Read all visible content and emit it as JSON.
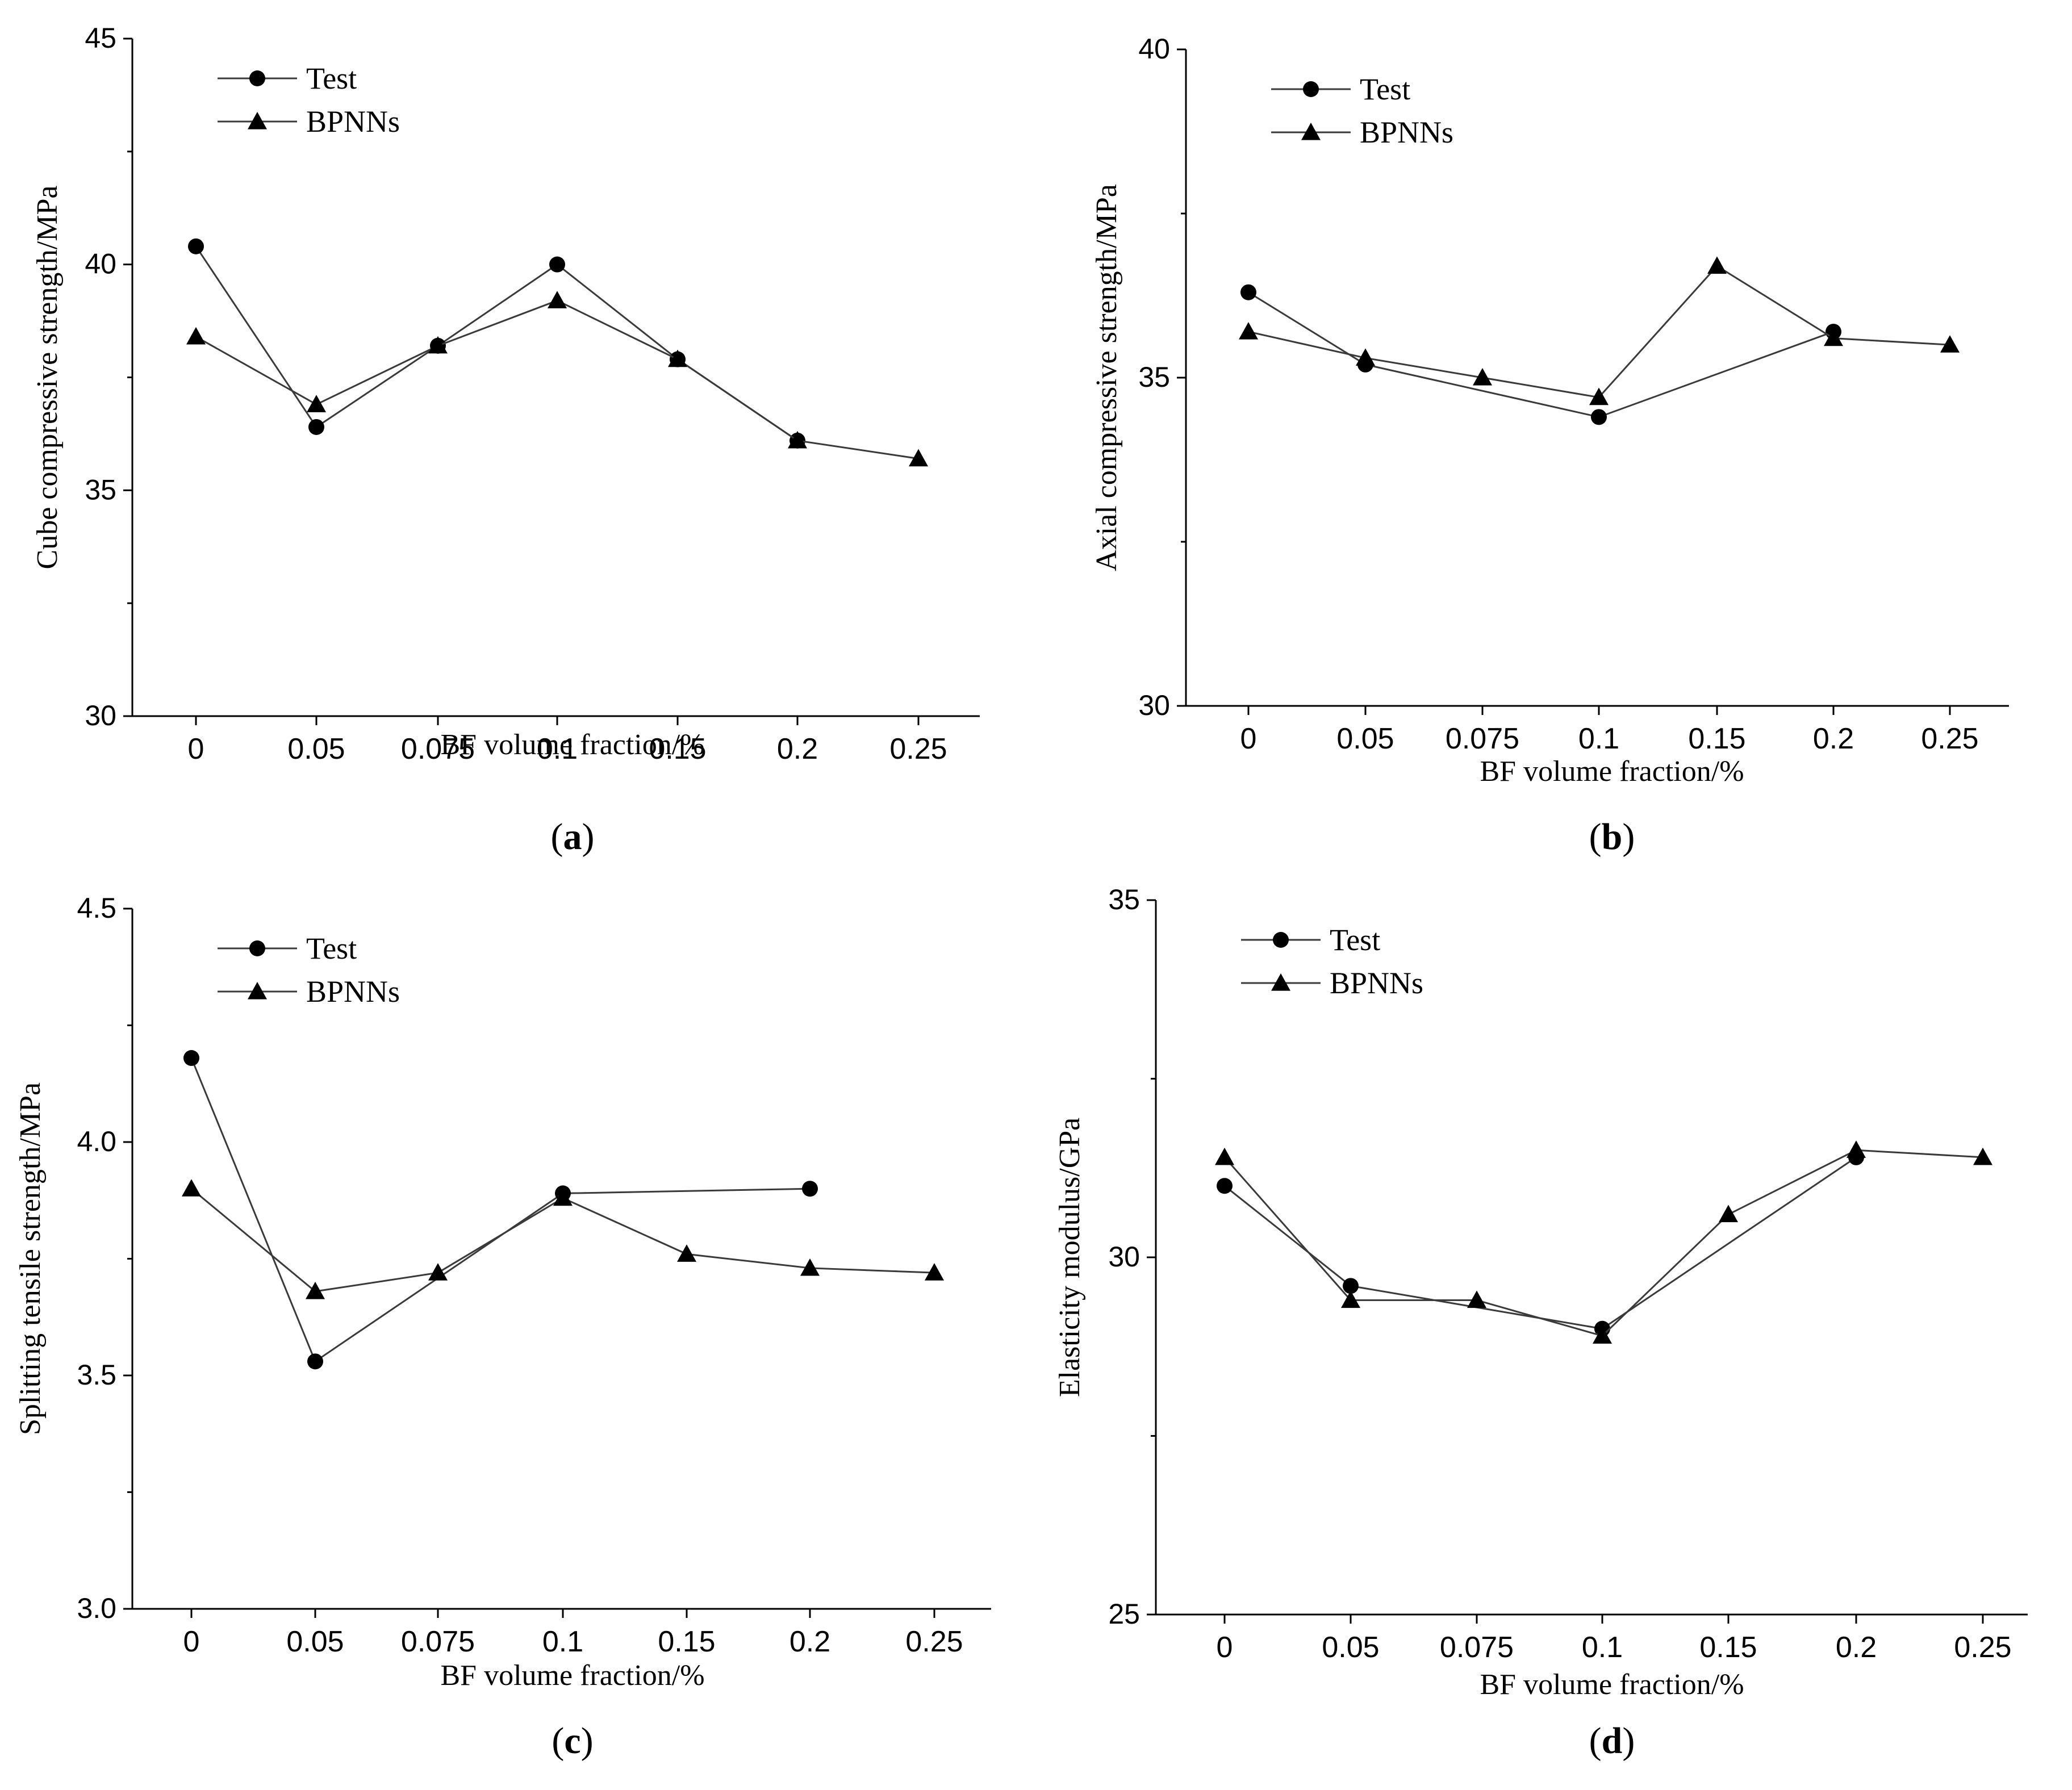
{
  "chart_data": [
    {
      "panel_label": "a",
      "type": "line",
      "ylabel": "Cube compressive strength/MPa",
      "xlabel": "BF volume fraction/%",
      "categories": [
        "0",
        "0.05",
        "0.075",
        "0.1",
        "0.15",
        "0.2",
        "0.25"
      ],
      "ylim": [
        30,
        45
      ],
      "yticks": [
        "30",
        "35",
        "40",
        "45"
      ],
      "grid": false,
      "legend": "top-left",
      "series": [
        {
          "name": "Test",
          "marker": "circle",
          "values": [
            40.4,
            36.4,
            38.2,
            40.0,
            37.9,
            36.1,
            null
          ]
        },
        {
          "name": "BPNNs",
          "marker": "triangle",
          "values": [
            38.4,
            36.9,
            38.2,
            39.2,
            37.9,
            36.1,
            35.7
          ]
        }
      ]
    },
    {
      "panel_label": "b",
      "type": "line",
      "ylabel": "Axial compressive strength/MPa",
      "xlabel": "BF volume fraction/%",
      "categories": [
        "0",
        "0.05",
        "0.075",
        "0.1",
        "0.15",
        "0.2",
        "0.25"
      ],
      "ylim": [
        30,
        40
      ],
      "yticks": [
        "30",
        "35",
        "40"
      ],
      "grid": false,
      "legend": "top-left",
      "series": [
        {
          "name": "Test",
          "marker": "circle",
          "values": [
            36.3,
            35.2,
            null,
            34.4,
            null,
            35.7,
            null
          ]
        },
        {
          "name": "BPNNs",
          "marker": "triangle",
          "values": [
            35.7,
            35.3,
            35.0,
            34.7,
            36.7,
            35.6,
            35.5
          ]
        }
      ]
    },
    {
      "panel_label": "c",
      "type": "line",
      "ylabel": "Splitting tensile strength/MPa",
      "xlabel": "BF volume fraction/%",
      "categories": [
        "0",
        "0.05",
        "0.075",
        "0.1",
        "0.15",
        "0.2",
        "0.25"
      ],
      "ylim": [
        3.0,
        4.5
      ],
      "yticks": [
        "3.0",
        "3.5",
        "4.0",
        "4.5"
      ],
      "grid": false,
      "legend": "top-left",
      "series": [
        {
          "name": "Test",
          "marker": "circle",
          "values": [
            4.18,
            3.53,
            null,
            3.89,
            null,
            3.9,
            null
          ]
        },
        {
          "name": "BPNNs",
          "marker": "triangle",
          "values": [
            3.9,
            3.68,
            3.72,
            3.88,
            3.76,
            3.73,
            3.72
          ]
        }
      ]
    },
    {
      "panel_label": "d",
      "type": "line",
      "ylabel": "Elasticity modulus/GPa",
      "xlabel": "BF volume fraction/%",
      "categories": [
        "0",
        "0.05",
        "0.075",
        "0.1",
        "0.15",
        "0.2",
        "0.25"
      ],
      "ylim": [
        25,
        35
      ],
      "yticks": [
        "25",
        "30",
        "35"
      ],
      "grid": false,
      "legend": "top-left",
      "series": [
        {
          "name": "Test",
          "marker": "circle",
          "values": [
            31.0,
            29.6,
            null,
            29.0,
            null,
            31.4,
            null
          ]
        },
        {
          "name": "BPNNs",
          "marker": "triangle",
          "values": [
            31.4,
            29.4,
            29.4,
            28.9,
            30.6,
            31.5,
            31.4
          ]
        }
      ]
    }
  ]
}
